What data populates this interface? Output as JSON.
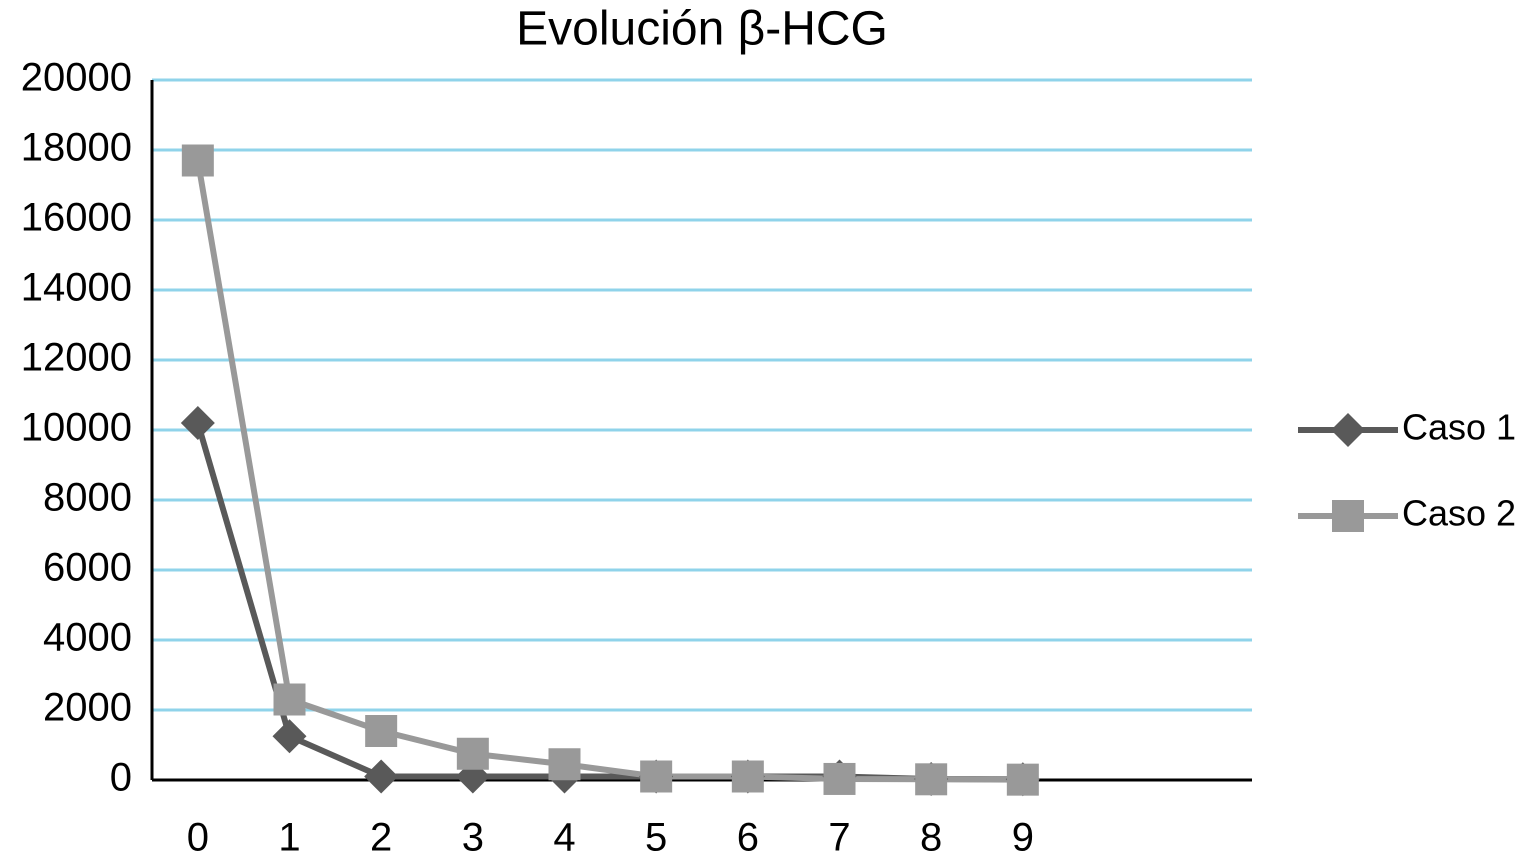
{
  "chart_data": {
    "type": "line",
    "title": "Evolución β-HCG",
    "categories": [
      "0",
      "1",
      "2",
      "3",
      "4",
      "5",
      "6",
      "7",
      "8",
      "9",
      null,
      null
    ],
    "series": [
      {
        "name": "Caso 1",
        "color": "#595959",
        "marker": "diamond",
        "values": [
          10200,
          1250,
          100,
          100,
          100,
          100,
          100,
          100,
          30,
          20,
          null,
          null
        ]
      },
      {
        "name": "Caso 2",
        "color": "#999999",
        "marker": "square",
        "values": [
          17700,
          2300,
          1400,
          750,
          450,
          100,
          100,
          30,
          20,
          10,
          null,
          null
        ]
      }
    ],
    "ylim": [
      0,
      20000
    ],
    "yticks": [
      0,
      2000,
      4000,
      6000,
      8000,
      10000,
      12000,
      14000,
      16000,
      18000,
      20000
    ],
    "grid": true,
    "grid_color": "#8fd3ea",
    "legend": "right"
  }
}
